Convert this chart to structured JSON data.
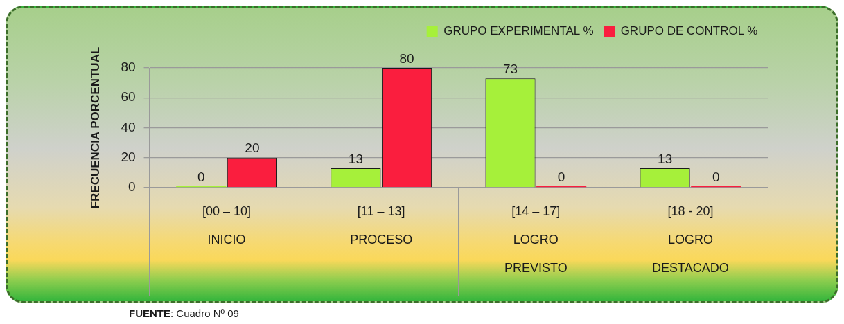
{
  "chart_data": {
    "type": "bar",
    "ylabel": "FRECUENCIA PORCENTUAL",
    "categories": [
      "[00 – 10]\nINICIO",
      "[11 – 13]\nPROCESO",
      "[14 – 17]\nLOGRO\nPREVISTO",
      "[18 - 20]\nLOGRO\nDESTACADO"
    ],
    "series": [
      {
        "name": "GRUPO EXPERIMENTAL %",
        "color": "#a6f03a",
        "values": [
          0,
          13,
          73,
          13
        ]
      },
      {
        "name": "GRUPO DE CONTROL %",
        "color": "#fa1e3e",
        "values": [
          20,
          80,
          0,
          0
        ]
      }
    ],
    "ylim": [
      0,
      80
    ],
    "yticks": [
      0,
      20,
      40,
      60,
      80
    ],
    "grid": "y",
    "legend": "top right",
    "data_labels": true,
    "annotations": [
      "FUENTE: Cuadro Nº 09"
    ]
  }
}
